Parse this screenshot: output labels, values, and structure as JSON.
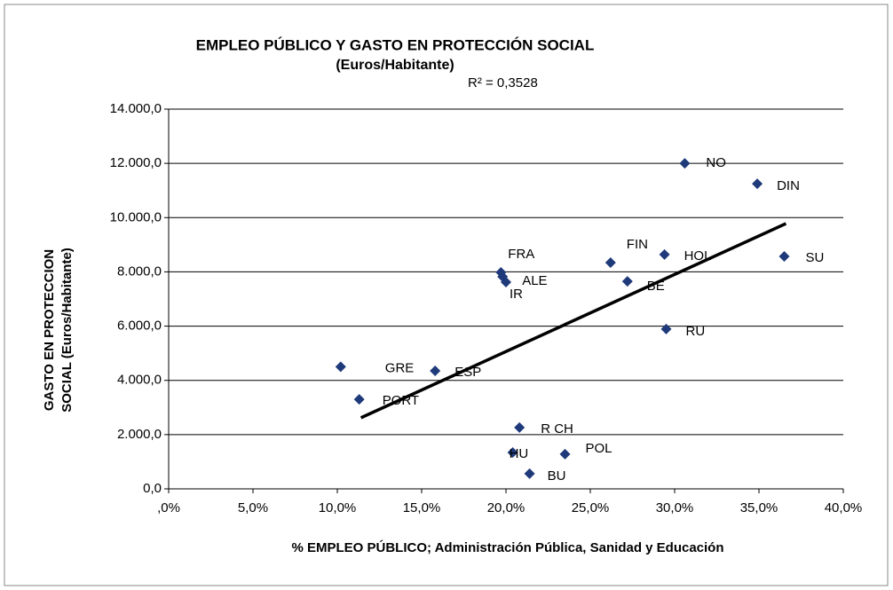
{
  "chart_data": {
    "type": "scatter",
    "title": "EMPLEO PÚBLICO Y GASTO EN PROTECCIÓN SOCIAL",
    "subtitle": "(Euros/Habitante)",
    "annotation": "R² = 0,3528",
    "x_label": "% EMPLEO PÚBLICO; Administración  Pública, Sanidad y Educación",
    "y_label": [
      "GASTO EN PROTECCION",
      "SOCIAL  (Euros/Habitante)"
    ],
    "color": "#1f3a7a",
    "labels": [
      "NO",
      "DIN",
      "SU",
      "HOL",
      "FIN",
      "BE",
      "RU",
      "FRA",
      "ALE",
      "IR",
      "GRE",
      "ESP",
      "PORT",
      "R CH",
      "HU",
      "POL",
      "BU"
    ],
    "x": [
      30.6,
      34.9,
      36.5,
      29.4,
      26.2,
      27.2,
      29.5,
      19.7,
      19.8,
      20.0,
      10.2,
      15.8,
      11.3,
      20.8,
      20.4,
      23.5,
      21.4
    ],
    "values": [
      12000,
      11250,
      8570,
      8640,
      8340,
      7650,
      5890,
      7980,
      7820,
      7620,
      4500,
      4350,
      3300,
      2260,
      1340,
      1280,
      560
    ],
    "trendline": {
      "x": [
        11.4,
        36.6
      ],
      "y": [
        2620,
        9780
      ],
      "color": "#000000"
    },
    "xlim": [
      0,
      40
    ],
    "xticks": [
      {
        "value": 0,
        "label": ",0%"
      },
      {
        "value": 5,
        "label": "5,0%"
      },
      {
        "value": 10,
        "label": "10,0%"
      },
      {
        "value": 15,
        "label": "15,0%"
      },
      {
        "value": 20,
        "label": "20,0%"
      },
      {
        "value": 25,
        "label": "25,0%"
      },
      {
        "value": 30,
        "label": "30,0%"
      },
      {
        "value": 35,
        "label": "35,0%"
      },
      {
        "value": 40,
        "label": "40,0%"
      }
    ],
    "ylim": [
      0,
      14000
    ],
    "yticks": [
      {
        "value": 0,
        "label": "0,0"
      },
      {
        "value": 2000,
        "label": "2.000,0"
      },
      {
        "value": 4000,
        "label": "4.000,0"
      },
      {
        "value": 6000,
        "label": "6.000,0"
      },
      {
        "value": 8000,
        "label": "8.000,0"
      },
      {
        "value": 10000,
        "label": "10.000,0"
      },
      {
        "value": 12000,
        "label": "12.000,0"
      },
      {
        "value": 14000,
        "label": "14.000,0"
      }
    ],
    "grid": true
  }
}
